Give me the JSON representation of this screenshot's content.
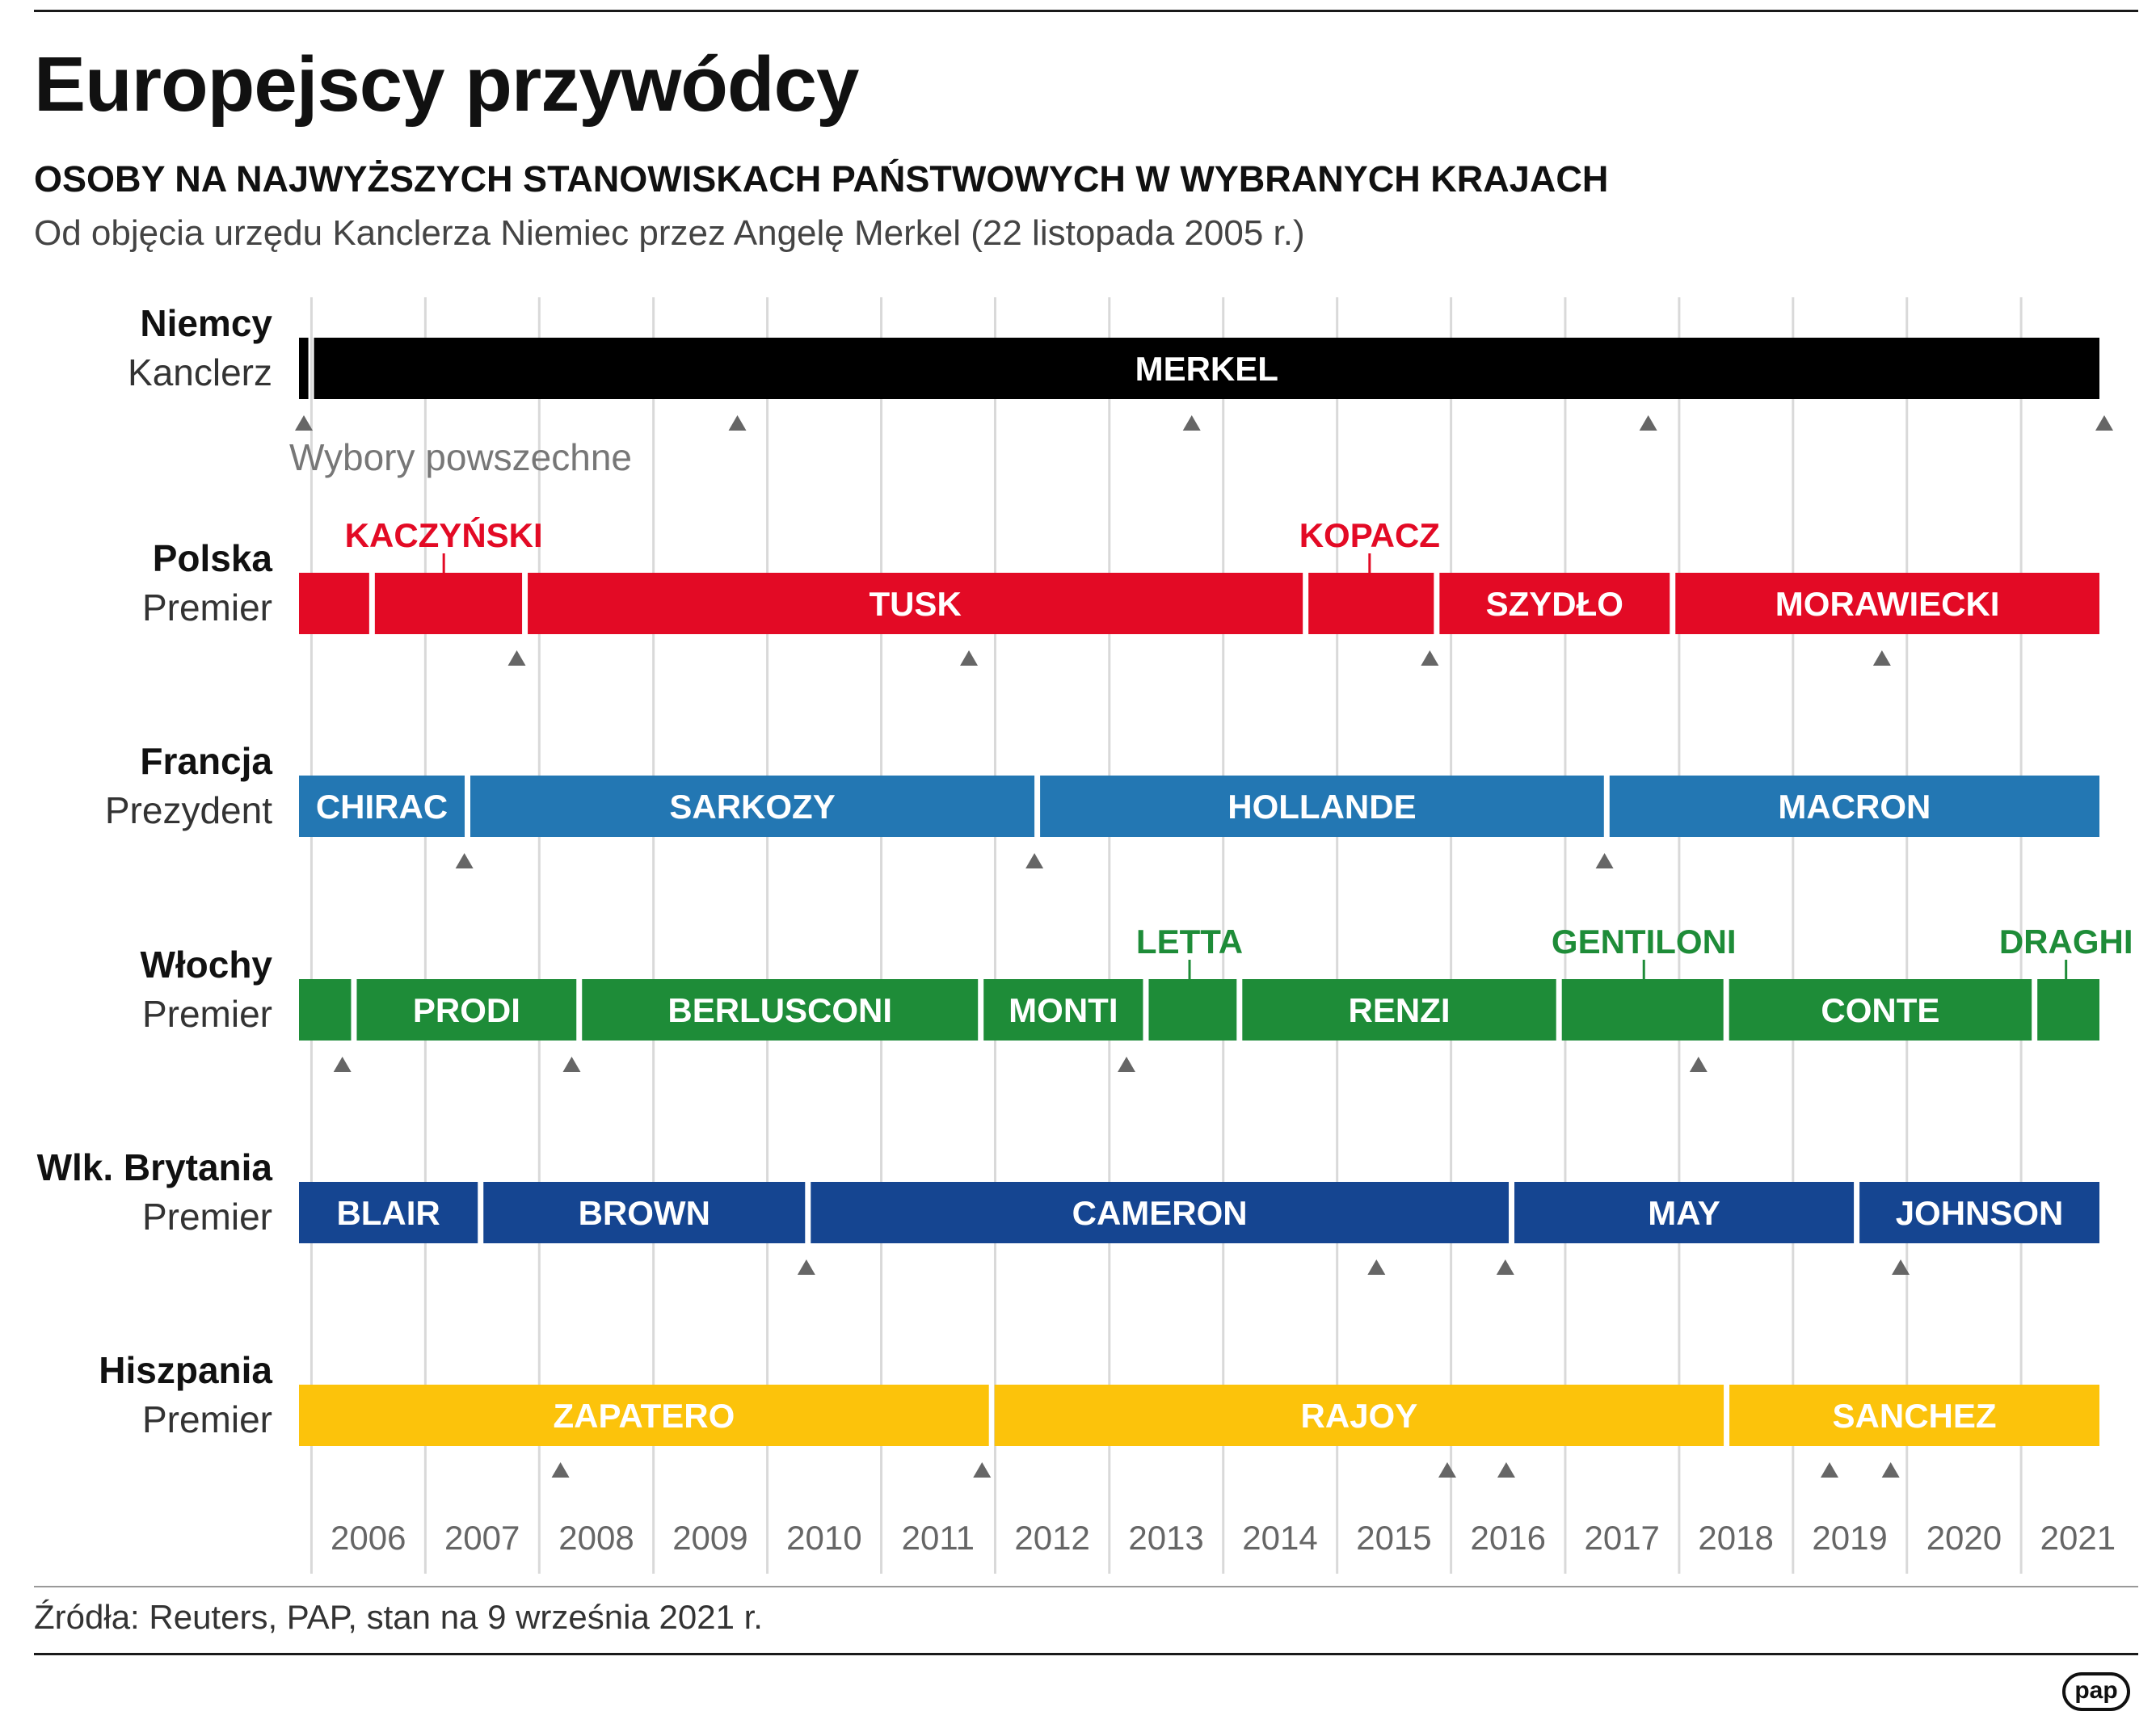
{
  "title": "Europejscy przywódcy",
  "subtitle": "OSOBY NA NAJWYŻSZYCH STANOWISKACH PAŃSTWOWYCH W WYBRANYCH KRAJACH",
  "note": "Od objęcia urzędu Kanclerza Niemiec przez Angelę Merkel (22 listopada 2005 r.)",
  "source": "Źródła: Reuters, PAP, stan na 9 września 2021 r.",
  "logo": "pap",
  "chart_data": {
    "type": "timeline",
    "x_range": [
      "2005-11-22",
      "2021-09-09"
    ],
    "year_ticks": [
      "2006",
      "2007",
      "2008",
      "2009",
      "2010",
      "2011",
      "2012",
      "2013",
      "2014",
      "2015",
      "2016",
      "2017",
      "2018",
      "2019",
      "2020",
      "2021"
    ],
    "marker_legend": "Wybory powszechne",
    "rows": [
      {
        "country": "Niemcy",
        "role": "Kanclerz",
        "color": "#000000",
        "label_color": "#ffffff",
        "segments": [
          {
            "label": "",
            "start": "2005-11-22",
            "end": "2005-12-31"
          },
          {
            "label": "MERKEL",
            "start": "2005-12-31",
            "end": "2021-09-09"
          }
        ],
        "callouts": [],
        "elections": [
          "2005-09-18",
          "2009-09-27",
          "2013-09-22",
          "2017-09-24",
          "2021-09-26"
        ]
      },
      {
        "country": "Polska",
        "role": "Premier",
        "color": "#e30a25",
        "label_color": "#ffffff",
        "segments": [
          {
            "label": "",
            "start": "2005-11-22",
            "end": "2006-07-14"
          },
          {
            "label": "",
            "start": "2006-07-14",
            "end": "2007-11-16"
          },
          {
            "label": "TUSK",
            "start": "2007-11-16",
            "end": "2014-09-22"
          },
          {
            "label": "",
            "start": "2014-09-22",
            "end": "2015-11-16"
          },
          {
            "label": "SZYDŁO",
            "start": "2015-11-16",
            "end": "2017-12-11"
          },
          {
            "label": "MORAWIECKI",
            "start": "2017-12-11",
            "end": "2021-09-09"
          }
        ],
        "callouts": [
          {
            "label": "KACZYŃSKI",
            "at": "2007-03-01"
          },
          {
            "label": "KOPACZ",
            "at": "2015-04-15"
          }
        ],
        "elections": [
          "2007-10-21",
          "2011-10-09",
          "2015-10-25",
          "2019-10-13"
        ]
      },
      {
        "country": "Francja",
        "role": "Prezydent",
        "color": "#2377b3",
        "label_color": "#ffffff",
        "segments": [
          {
            "label": "CHIRAC",
            "start": "2005-11-22",
            "end": "2007-05-16"
          },
          {
            "label": "SARKOZY",
            "start": "2007-05-16",
            "end": "2012-05-15"
          },
          {
            "label": "HOLLANDE",
            "start": "2012-05-15",
            "end": "2017-05-14"
          },
          {
            "label": "MACRON",
            "start": "2017-05-14",
            "end": "2021-09-09"
          }
        ],
        "callouts": [],
        "elections": [
          "2007-05-06",
          "2012-05-06",
          "2017-05-07"
        ]
      },
      {
        "country": "Włochy",
        "role": "Premier",
        "color": "#1e8c38",
        "label_color": "#ffffff",
        "segments": [
          {
            "label": "",
            "start": "2005-11-22",
            "end": "2006-05-17"
          },
          {
            "label": "PRODI",
            "start": "2006-05-17",
            "end": "2008-05-08"
          },
          {
            "label": "BERLUSCONI",
            "start": "2008-05-08",
            "end": "2011-11-16"
          },
          {
            "label": "MONTI",
            "start": "2011-11-16",
            "end": "2013-04-28"
          },
          {
            "label": "",
            "start": "2013-04-28",
            "end": "2014-02-22"
          },
          {
            "label": "RENZI",
            "start": "2014-02-22",
            "end": "2016-12-12"
          },
          {
            "label": "",
            "start": "2016-12-12",
            "end": "2018-06-01"
          },
          {
            "label": "CONTE",
            "start": "2018-06-01",
            "end": "2021-02-13"
          },
          {
            "label": "",
            "start": "2021-02-13",
            "end": "2021-09-09"
          }
        ],
        "callouts": [
          {
            "label": "LETTA",
            "at": "2013-09-15"
          },
          {
            "label": "GENTILONI",
            "at": "2017-09-10"
          },
          {
            "label": "DRAGHI",
            "at": "2021-05-25"
          }
        ],
        "elections": [
          "2006-04-10",
          "2008-04-14",
          "2013-02-25",
          "2018-03-04"
        ]
      },
      {
        "country": "Wlk. Brytania",
        "role": "Premier",
        "color": "#154591",
        "label_color": "#ffffff",
        "segments": [
          {
            "label": "BLAIR",
            "start": "2005-11-22",
            "end": "2007-06-27"
          },
          {
            "label": "BROWN",
            "start": "2007-06-27",
            "end": "2010-05-11"
          },
          {
            "label": "CAMERON",
            "start": "2010-05-11",
            "end": "2016-07-13"
          },
          {
            "label": "MAY",
            "start": "2016-07-13",
            "end": "2019-07-24"
          },
          {
            "label": "JOHNSON",
            "start": "2019-07-24",
            "end": "2021-09-09"
          }
        ],
        "callouts": [],
        "elections": [
          "2010-05-06",
          "2015-05-07",
          "2016-06-23",
          "2019-12-12"
        ]
      },
      {
        "country": "Hiszpania",
        "role": "Premier",
        "color": "#fcc30b",
        "label_color": "#ffffff",
        "segments": [
          {
            "label": "ZAPATERO",
            "start": "2005-11-22",
            "end": "2011-12-21"
          },
          {
            "label": "RAJOY",
            "start": "2011-12-21",
            "end": "2018-06-02"
          },
          {
            "label": "SANCHEZ",
            "start": "2018-06-02",
            "end": "2021-09-09"
          }
        ],
        "callouts": [],
        "elections": [
          "2008-03-09",
          "2011-11-20",
          "2015-12-20",
          "2016-06-26",
          "2019-04-28",
          "2019-11-10"
        ]
      }
    ]
  }
}
